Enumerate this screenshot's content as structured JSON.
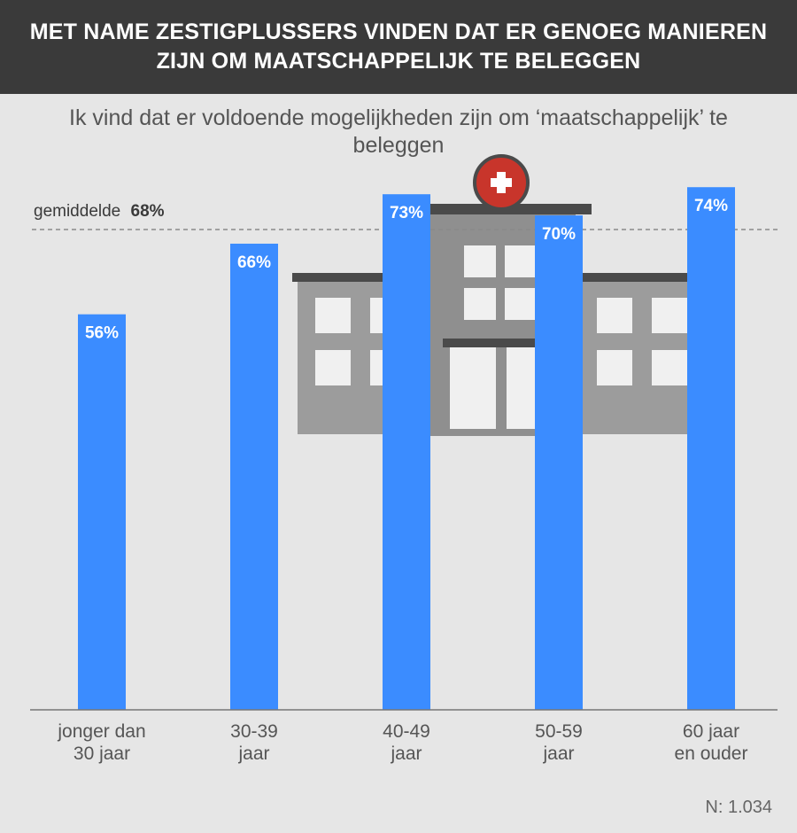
{
  "header": {
    "title": "MET NAME ZESTIGPLUSSERS VINDEN DAT ER GENOEG MANIEREN ZIJN OM MAATSCHAPPELIJK TE BELEGGEN"
  },
  "colors": {
    "bar": "#3b8cff",
    "header_bg": "#3a3a3a",
    "background": "#e6e6e6",
    "building": "#8f8f8f",
    "building_dark": "#9c9c9c",
    "roof": "#4a4a4a",
    "window": "#f0f0f0",
    "cross_circle": "#c8352b"
  },
  "icons": [
    "hospital-building-icon",
    "medical-cross-icon"
  ],
  "chart_data": {
    "type": "bar",
    "title": "Ik vind dat er voldoende mogelijkheden zijn om ‘maatschappelijk’ te beleggen",
    "categories": [
      [
        "jonger dan",
        "30 jaar"
      ],
      [
        "30-39",
        "jaar"
      ],
      [
        "40-49",
        "jaar"
      ],
      [
        "50-59",
        "jaar"
      ],
      [
        "60 jaar",
        "en ouder"
      ]
    ],
    "values": [
      56,
      66,
      73,
      70,
      74
    ],
    "value_labels": [
      "56%",
      "66%",
      "73%",
      "70%",
      "74%"
    ],
    "ylim": [
      0,
      100
    ],
    "grid": false,
    "legend": "none",
    "average": {
      "value": 68,
      "label_prefix": "gemiddelde",
      "label_value": "68%"
    }
  },
  "footnote": "N: 1.034"
}
